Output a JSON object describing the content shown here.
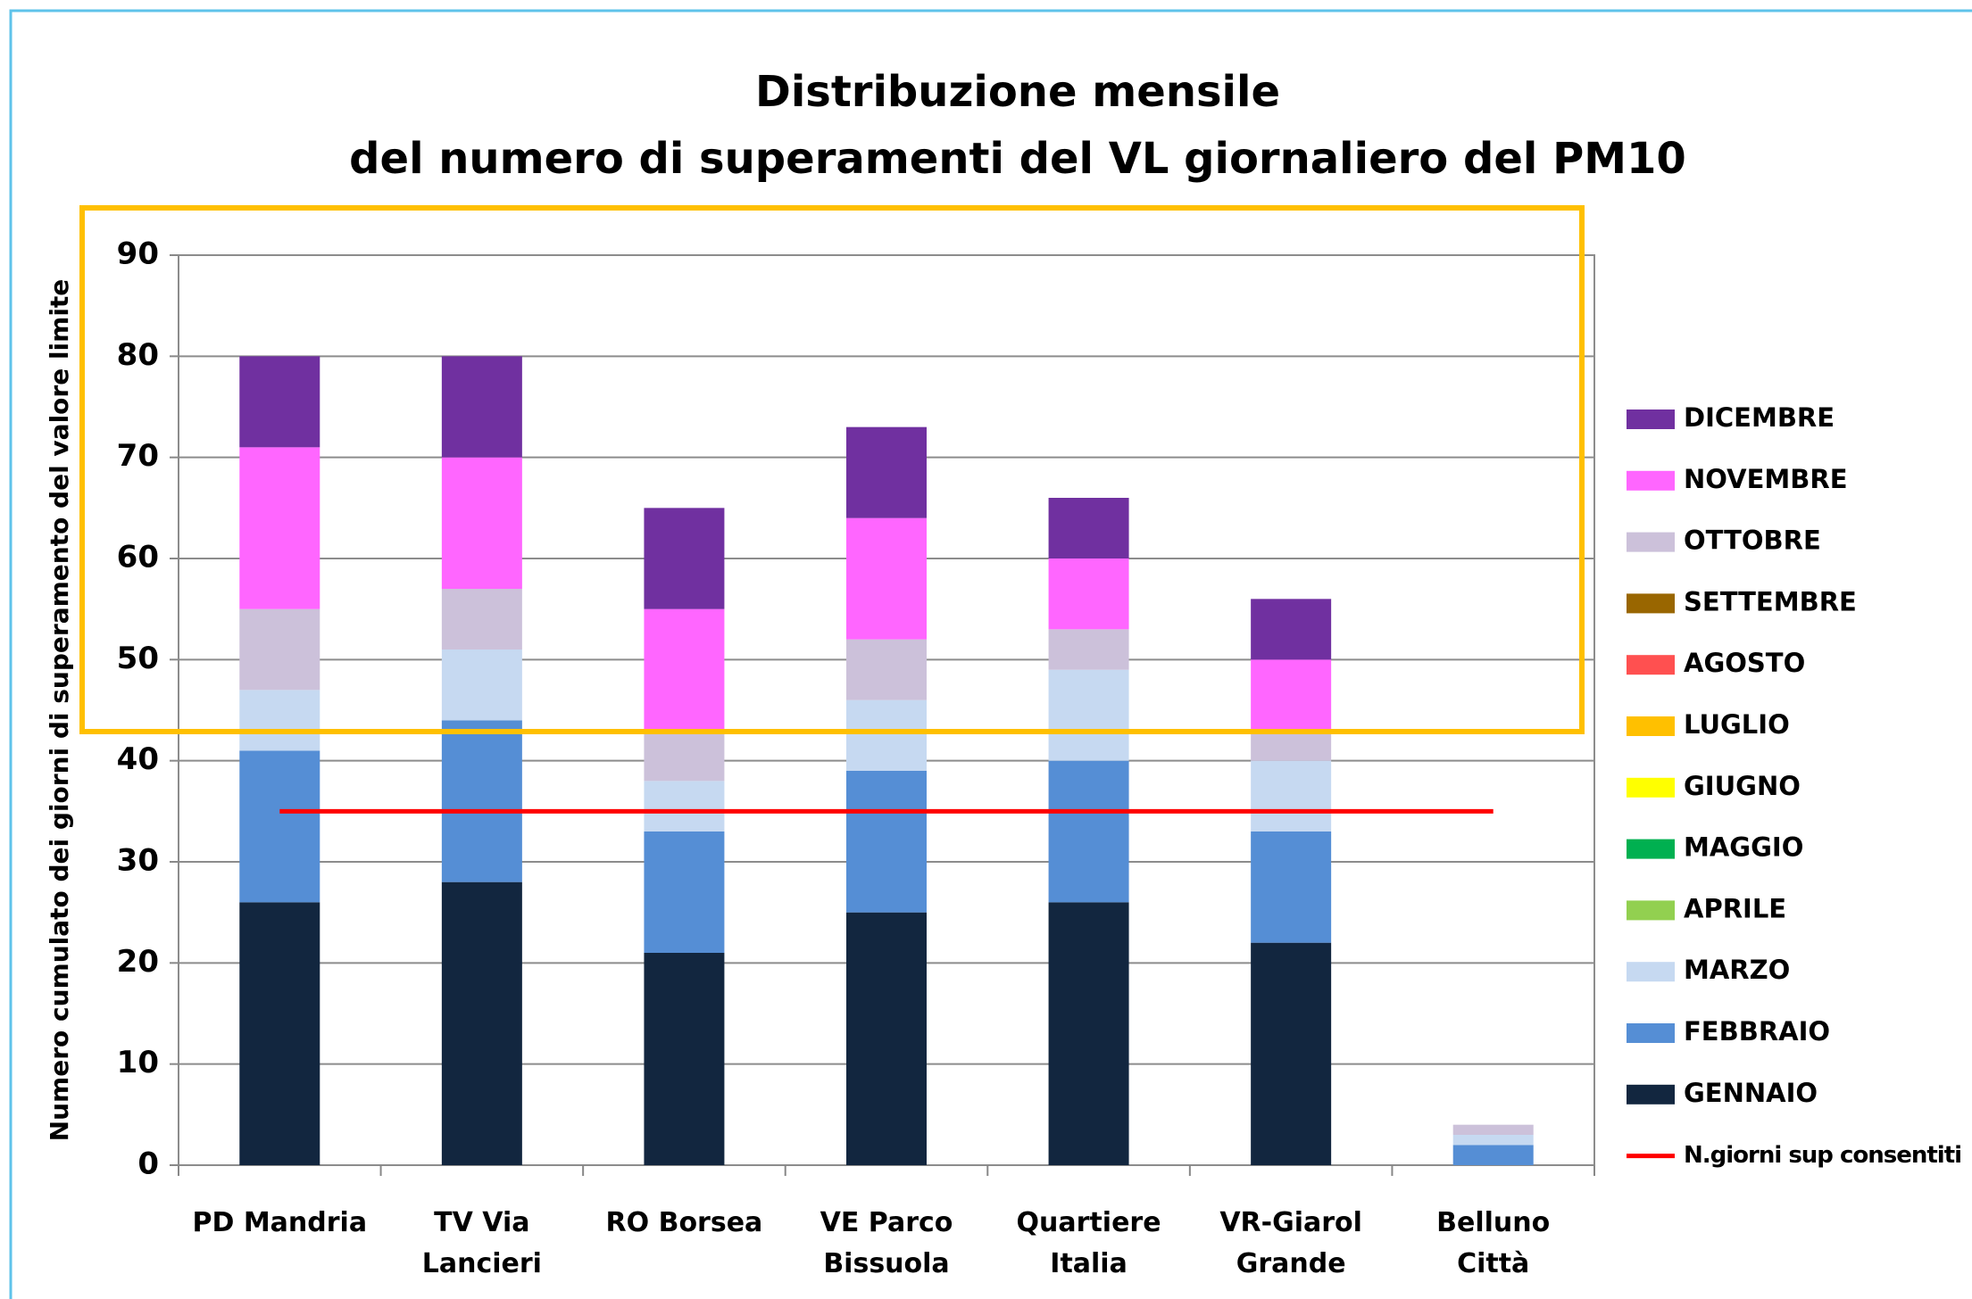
{
  "chart_data": {
    "type": "bar",
    "stacked": true,
    "title": [
      "Distribuzione mensile",
      "del numero di superamenti del VL giornaliero del PM10"
    ],
    "ylabel": "Numero cumulato dei giorni di superamento del valore limite",
    "categories": [
      "PD Mandria",
      "TV Via Lancieri",
      "RO Borsea",
      "VE Parco Bissuola",
      "Quartiere Italia",
      "VR-Giarol Grande",
      "Belluno Città"
    ],
    "ylim": [
      0,
      90
    ],
    "yticks": [
      0,
      10,
      20,
      30,
      40,
      50,
      60,
      70,
      80,
      90
    ],
    "grid": true,
    "legend": "right",
    "series": [
      {
        "name": "GENNAIO",
        "color": "#12263f",
        "values": [
          26,
          28,
          21,
          25,
          26,
          22,
          0
        ]
      },
      {
        "name": "FEBBRAIO",
        "color": "#558ed5",
        "values": [
          15,
          16,
          12,
          14,
          14,
          11,
          2
        ]
      },
      {
        "name": "MARZO",
        "color": "#c6d9f1",
        "values": [
          6,
          7,
          5,
          7,
          9,
          7,
          1
        ]
      },
      {
        "name": "APRILE",
        "color": "#92d050",
        "values": [
          0,
          0,
          0,
          0,
          0,
          0,
          0
        ]
      },
      {
        "name": "MAGGIO",
        "color": "#00b050",
        "values": [
          0,
          0,
          0,
          0,
          0,
          0,
          0
        ]
      },
      {
        "name": "GIUGNO",
        "color": "#ffff00",
        "values": [
          0,
          0,
          0,
          0,
          0,
          0,
          0
        ]
      },
      {
        "name": "LUGLIO",
        "color": "#ffc000",
        "values": [
          0,
          0,
          0,
          0,
          0,
          0,
          0
        ]
      },
      {
        "name": "AGOSTO",
        "color": "#ff5050",
        "values": [
          0,
          0,
          0,
          0,
          0,
          0,
          0
        ]
      },
      {
        "name": "SETTEMBRE",
        "color": "#996600",
        "values": [
          0,
          0,
          0,
          0,
          0,
          0,
          0
        ]
      },
      {
        "name": "OTTOBRE",
        "color": "#ccc1da",
        "values": [
          8,
          6,
          5,
          6,
          4,
          3,
          1
        ]
      },
      {
        "name": "NOVEMBRE",
        "color": "#ff66ff",
        "values": [
          16,
          13,
          12,
          12,
          7,
          7,
          0
        ]
      },
      {
        "name": "DICEMBRE",
        "color": "#7030a0",
        "values": [
          9,
          10,
          10,
          9,
          6,
          6,
          0
        ]
      },
      {
        "name": "N.giorni sup consentiti",
        "type": "line",
        "color": "#ff0000",
        "values": [
          35,
          35,
          35,
          35,
          35,
          35,
          35
        ]
      }
    ]
  }
}
